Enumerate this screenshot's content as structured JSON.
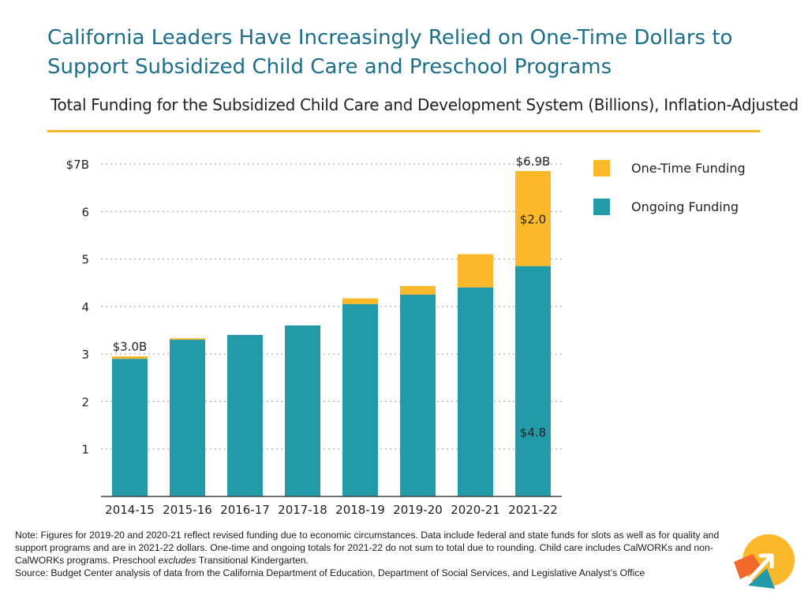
{
  "title": "California Leaders Have Increasingly Relied on One-Time Dollars to Support Subsidized Child Care and Preschool Programs",
  "subtitle": "Total Funding for the Subsidized Child Care and Development System (Billions), Inflation-Adjusted",
  "legend": {
    "one_time": "One-Time Funding",
    "ongoing": "Ongoing Funding"
  },
  "colors": {
    "ongoing": "#229aa8",
    "one_time": "#fbb82a",
    "title": "#1b6f8a",
    "rule": "#f5b72a",
    "logo_orange": "#f26a2b"
  },
  "note": {
    "lead": "Note: Figures for 2019-20 and 2020-21 reflect revised funding due to economic circumstances. Data include federal and state funds for slots as well as for quality and support programs and are in 2021-22 dollars. One-time and ongoing totals for 2021-22 do not sum to total due to rounding. Child care includes CalWORKs and non-CalWORKs programs. Preschool ",
    "emphasis": "excludes",
    "tail": " Transitional Kindergarten."
  },
  "source": "Source: Budget Center analysis of data from the California Department of Education, Department of Social Services, and Legislative Analyst’s Office",
  "logo": "budget-center-logo",
  "chart_data": {
    "type": "bar",
    "stacked": true,
    "categories": [
      "2014-15",
      "2015-16",
      "2016-17",
      "2017-18",
      "2018-19",
      "2019-20",
      "2020-21",
      "2021-22"
    ],
    "series": [
      {
        "name": "Ongoing Funding",
        "color": "#229aa8",
        "values": [
          2.9,
          3.3,
          3.4,
          3.6,
          4.05,
          4.25,
          4.4,
          4.85
        ]
      },
      {
        "name": "One-Time Funding",
        "color": "#fbb82a",
        "values": [
          0.05,
          0.03,
          0.0,
          0.0,
          0.12,
          0.18,
          0.7,
          2.0
        ]
      }
    ],
    "ylim": [
      0,
      7
    ],
    "yticks": [
      1,
      2,
      3,
      4,
      5,
      6,
      7
    ],
    "ytick_labels": [
      "1",
      "2",
      "3",
      "4",
      "5",
      "6",
      "$7B"
    ],
    "grid": true,
    "legend_position": "right",
    "annotations": [
      {
        "category": "2014-15",
        "text": "$3.0B",
        "position": "above"
      },
      {
        "category": "2021-22",
        "text": "$6.9B",
        "position": "above"
      },
      {
        "category": "2021-22",
        "series": "One-Time Funding",
        "text": "$2.0",
        "position": "inside"
      },
      {
        "category": "2021-22",
        "series": "Ongoing Funding",
        "text": "$4.8",
        "position": "inside"
      }
    ]
  }
}
